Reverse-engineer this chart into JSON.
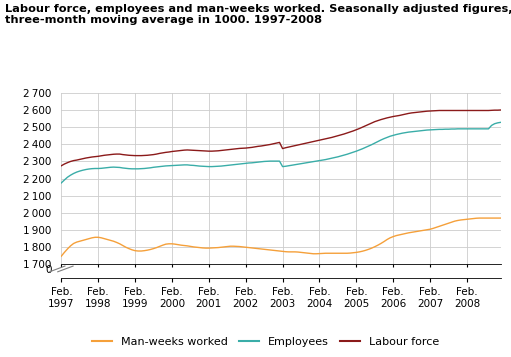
{
  "title": "Labour force, employees and man-weeks worked. Seasonally adjusted figures,\nthree-month moving average in 1000. 1997-2008",
  "background_color": "#ffffff",
  "grid_color": "#cccccc",
  "legend_labels": [
    "Man-weeks worked",
    "Employees",
    "Labour force"
  ],
  "line_colors": [
    "#f5a03a",
    "#3aada8",
    "#8b1a1a"
  ],
  "x_tick_labels": [
    "Feb.\n1997",
    "Feb.\n1998",
    "Feb.\n1999",
    "Feb.\n2000",
    "Feb.\n2001",
    "Feb.\n2002",
    "Feb.\n2003",
    "Feb.\n2004",
    "Feb.\n2005",
    "Feb.\n2006",
    "Feb.\n2007",
    "Feb.\n2008"
  ],
  "ylim_main": [
    1700,
    2700
  ],
  "yticks_main": [
    1700,
    1800,
    1900,
    2000,
    2100,
    2200,
    2300,
    2400,
    2500,
    2600,
    2700
  ],
  "labour_force": [
    2275,
    2285,
    2293,
    2300,
    2305,
    2308,
    2312,
    2316,
    2320,
    2323,
    2326,
    2328,
    2330,
    2333,
    2336,
    2338,
    2340,
    2342,
    2343,
    2343,
    2340,
    2338,
    2336,
    2335,
    2334,
    2334,
    2334,
    2335,
    2336,
    2338,
    2340,
    2343,
    2347,
    2350,
    2353,
    2355,
    2358,
    2360,
    2362,
    2364,
    2366,
    2367,
    2366,
    2365,
    2364,
    2363,
    2362,
    2361,
    2360,
    2360,
    2361,
    2362,
    2364,
    2366,
    2368,
    2370,
    2372,
    2374,
    2376,
    2377,
    2378,
    2380,
    2382,
    2385,
    2388,
    2390,
    2393,
    2396,
    2399,
    2403,
    2407,
    2411,
    2375,
    2380,
    2384,
    2388,
    2392,
    2396,
    2400,
    2404,
    2408,
    2412,
    2416,
    2420,
    2424,
    2428,
    2432,
    2436,
    2440,
    2445,
    2450,
    2455,
    2460,
    2466,
    2472,
    2478,
    2485,
    2492,
    2500,
    2508,
    2516,
    2524,
    2532,
    2538,
    2544,
    2549,
    2554,
    2558,
    2562,
    2565,
    2568,
    2572,
    2576,
    2580,
    2583,
    2585,
    2587,
    2589,
    2591,
    2593,
    2594,
    2595,
    2596,
    2597,
    2597,
    2597,
    2597,
    2597,
    2597,
    2597,
    2597,
    2597,
    2597,
    2597,
    2597,
    2597,
    2597,
    2597,
    2597,
    2597,
    2598,
    2599,
    2599,
    2600
  ],
  "employees": [
    2175,
    2192,
    2208,
    2220,
    2230,
    2238,
    2244,
    2249,
    2253,
    2256,
    2258,
    2259,
    2259,
    2260,
    2262,
    2264,
    2266,
    2267,
    2266,
    2265,
    2262,
    2260,
    2258,
    2257,
    2257,
    2257,
    2258,
    2259,
    2261,
    2263,
    2266,
    2268,
    2270,
    2272,
    2274,
    2275,
    2276,
    2277,
    2278,
    2279,
    2280,
    2280,
    2278,
    2277,
    2275,
    2273,
    2272,
    2271,
    2270,
    2270,
    2271,
    2272,
    2273,
    2275,
    2277,
    2279,
    2281,
    2283,
    2285,
    2287,
    2289,
    2291,
    2292,
    2294,
    2296,
    2298,
    2300,
    2301,
    2302,
    2302,
    2302,
    2302,
    2270,
    2272,
    2275,
    2278,
    2281,
    2284,
    2287,
    2290,
    2293,
    2296,
    2299,
    2302,
    2305,
    2308,
    2311,
    2315,
    2319,
    2323,
    2327,
    2332,
    2337,
    2342,
    2348,
    2354,
    2360,
    2367,
    2374,
    2382,
    2390,
    2398,
    2407,
    2416,
    2425,
    2433,
    2440,
    2447,
    2452,
    2457,
    2461,
    2465,
    2468,
    2471,
    2473,
    2475,
    2477,
    2479,
    2481,
    2483,
    2484,
    2485,
    2486,
    2487,
    2487,
    2488,
    2488,
    2489,
    2489,
    2490,
    2490,
    2490,
    2490,
    2490,
    2490,
    2490,
    2490,
    2490,
    2490,
    2490,
    2510,
    2520,
    2525,
    2528
  ],
  "manweeks": [
    1748,
    1770,
    1790,
    1808,
    1822,
    1830,
    1835,
    1840,
    1845,
    1850,
    1855,
    1858,
    1858,
    1855,
    1850,
    1845,
    1840,
    1835,
    1828,
    1820,
    1810,
    1800,
    1792,
    1785,
    1780,
    1778,
    1778,
    1780,
    1783,
    1787,
    1792,
    1798,
    1805,
    1812,
    1818,
    1820,
    1820,
    1818,
    1815,
    1812,
    1810,
    1808,
    1805,
    1802,
    1800,
    1798,
    1796,
    1795,
    1795,
    1796,
    1797,
    1798,
    1800,
    1802,
    1804,
    1806,
    1806,
    1805,
    1804,
    1802,
    1800,
    1798,
    1796,
    1794,
    1792,
    1790,
    1788,
    1786,
    1784,
    1782,
    1780,
    1778,
    1776,
    1774,
    1773,
    1773,
    1773,
    1772,
    1770,
    1768,
    1766,
    1764,
    1762,
    1762,
    1763,
    1764,
    1765,
    1765,
    1765,
    1765,
    1765,
    1765,
    1765,
    1765,
    1766,
    1768,
    1770,
    1773,
    1777,
    1782,
    1788,
    1795,
    1803,
    1812,
    1822,
    1833,
    1845,
    1855,
    1862,
    1868,
    1872,
    1876,
    1880,
    1884,
    1887,
    1890,
    1893,
    1896,
    1899,
    1902,
    1905,
    1910,
    1916,
    1922,
    1928,
    1934,
    1940,
    1946,
    1952,
    1956,
    1959,
    1961,
    1963,
    1965,
    1967,
    1969,
    1970,
    1970,
    1970,
    1970,
    1970,
    1970,
    1970,
    1970
  ]
}
